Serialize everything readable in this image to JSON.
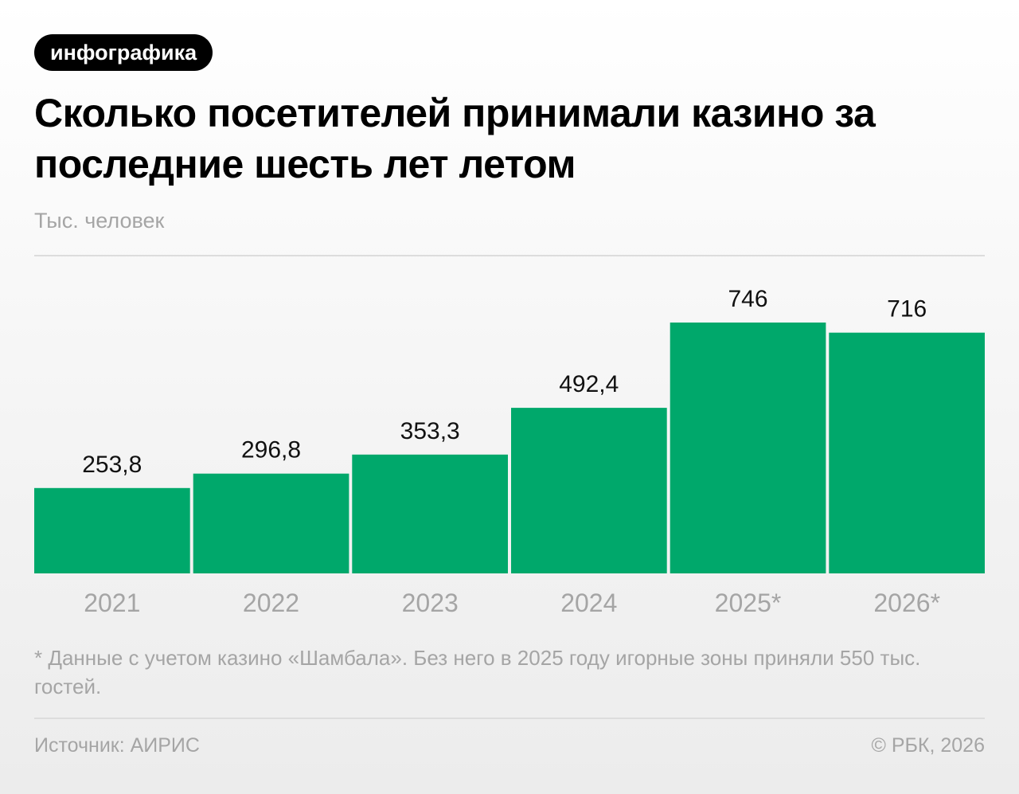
{
  "badge": "инфографика",
  "chart_data": {
    "type": "bar",
    "title": "Сколько посетителей принимали казино за последние шесть лет летом",
    "unit_label": "Тыс. человек",
    "categories": [
      "2021",
      "2022",
      "2023",
      "2024",
      "2025*",
      "2026*"
    ],
    "values": [
      253.8,
      296.8,
      353.3,
      492.4,
      746,
      716
    ],
    "value_labels": [
      "253,8",
      "296,8",
      "353,3",
      "492,4",
      "746",
      "716"
    ],
    "bar_color": "#00A86B",
    "ylim": [
      0,
      746
    ],
    "grid": false,
    "legend": "none"
  },
  "footnote": "* Данные с учетом казино «Шамбала». Без него в 2025 году игорные зоны приняли 550 тыс. гостей.",
  "source": "Источник: АИРИС",
  "copyright": "© РБК, 2026"
}
